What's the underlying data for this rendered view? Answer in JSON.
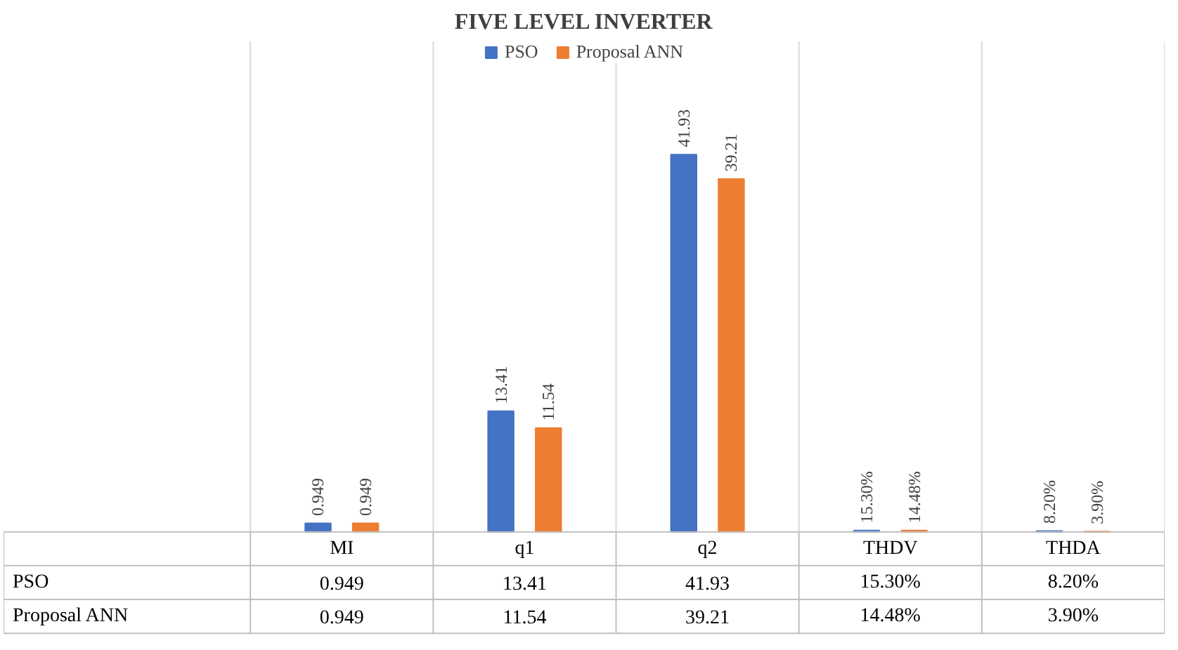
{
  "chart_data": {
    "type": "bar",
    "title": "FIVE LEVEL INVERTER",
    "categories": [
      "MI",
      "q1",
      "q2",
      "THDV",
      "THDA"
    ],
    "series": [
      {
        "name": "PSO",
        "color": "#4472c4",
        "values": [
          0.949,
          13.41,
          41.93,
          0.153,
          0.082
        ],
        "value_labels": [
          "0.949",
          "13.41",
          "41.93",
          "15.30%",
          "8.20%"
        ]
      },
      {
        "name": "Proposal ANN",
        "color": "#ed7d31",
        "values": [
          0.949,
          11.54,
          39.21,
          0.1448,
          0.039
        ],
        "value_labels": [
          "0.949",
          "11.54",
          "39.21",
          "14.48%",
          "3.90%"
        ]
      }
    ],
    "data_labels": true,
    "legend": "top",
    "grid": "x"
  }
}
